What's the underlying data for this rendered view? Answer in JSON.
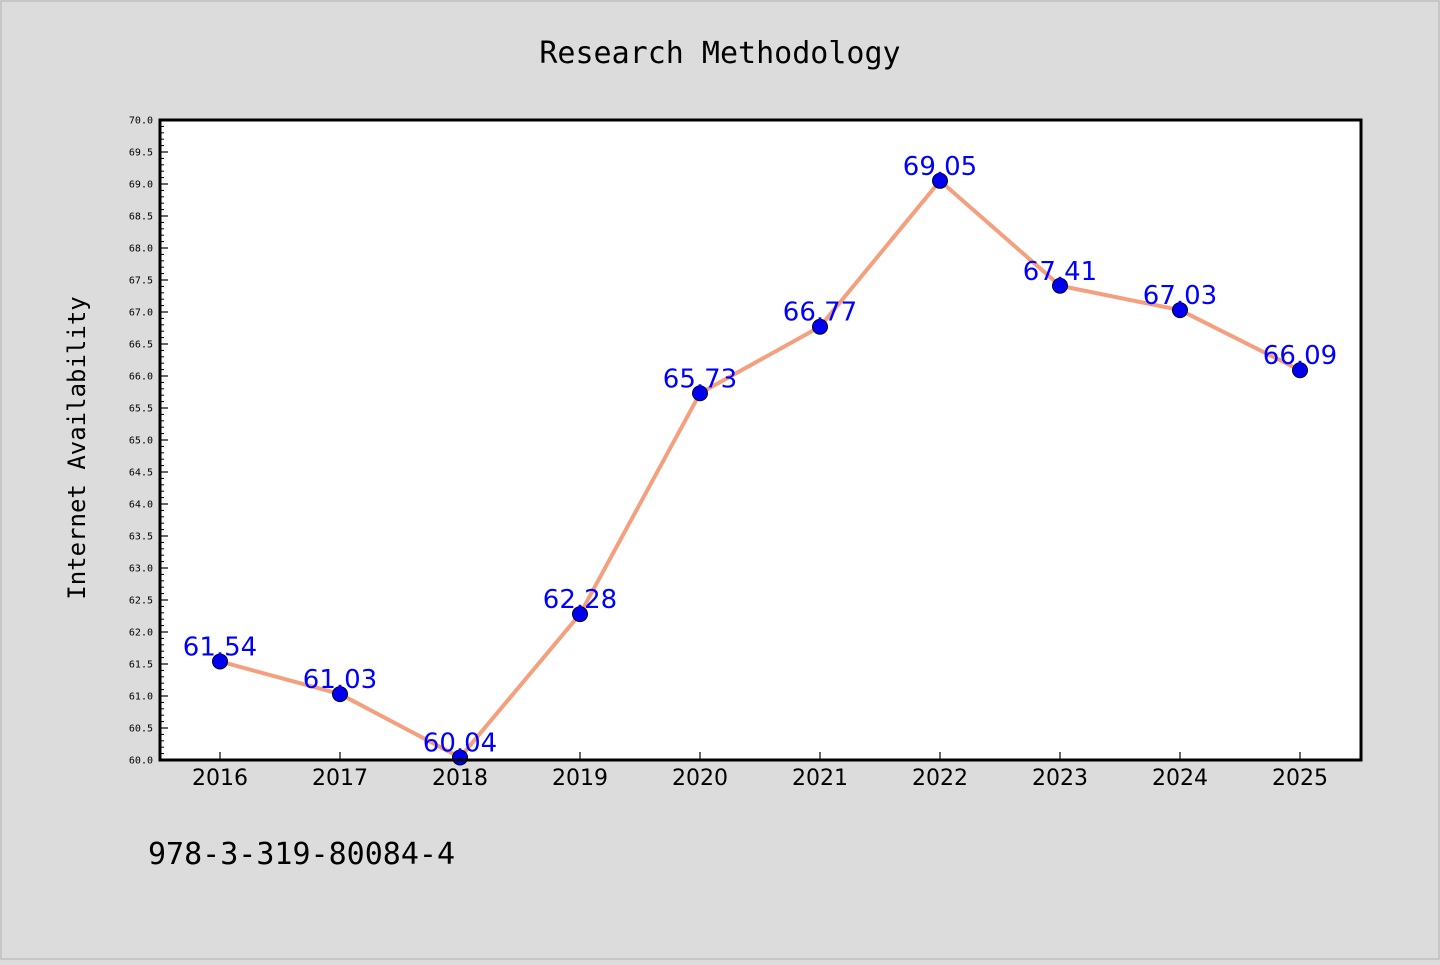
{
  "figure": {
    "background": "#dcdcdc",
    "footer_text": "978-3-319-80084-4"
  },
  "chart_data": {
    "type": "line",
    "title": "Research Methodology",
    "xlabel": "",
    "ylabel": "Internet Availability",
    "categories": [
      "2016",
      "2017",
      "2018",
      "2019",
      "2020",
      "2021",
      "2022",
      "2023",
      "2024",
      "2025"
    ],
    "series": [
      {
        "values": [
          61.54,
          61.03,
          60.04,
          62.28,
          65.73,
          66.77,
          69.05,
          67.41,
          67.03,
          66.09
        ],
        "line_color": "#f4a07e",
        "marker_color": "#0000ee",
        "label_color": "#0000ff"
      }
    ],
    "data_labels": [
      "61.54",
      "61.03",
      "60.04",
      "62.28",
      "65.73",
      "66.77",
      "69.05",
      "67.41",
      "67.03",
      "66.09"
    ],
    "ylim": [
      60.0,
      70.0
    ],
    "yticks": [
      "60.0",
      "60.5",
      "61.0",
      "61.5",
      "62.0",
      "62.5",
      "63.0",
      "63.5",
      "64.0",
      "64.5",
      "65.0",
      "65.5",
      "66.0",
      "66.5",
      "67.0",
      "67.5",
      "68.0",
      "68.5",
      "69.0",
      "69.5",
      "70.0"
    ],
    "grid": false,
    "legend": "none"
  }
}
